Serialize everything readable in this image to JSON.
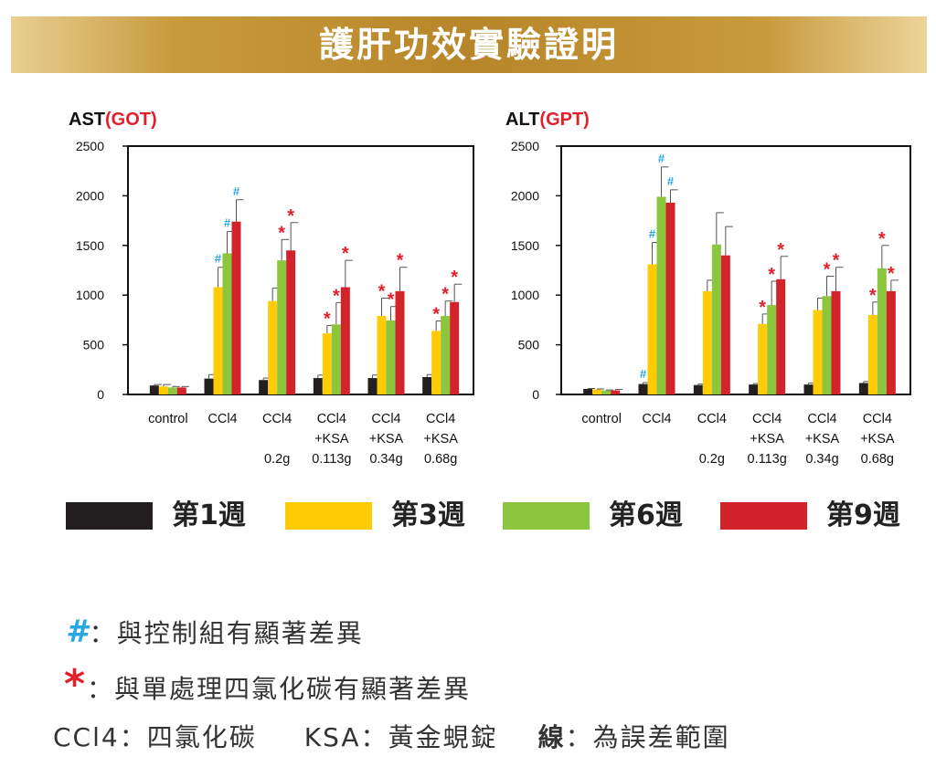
{
  "banner": {
    "title": "護肝功效實驗證明"
  },
  "colors": {
    "week1": "#231f20",
    "week3": "#ffcb05",
    "week6": "#8cc63f",
    "week9": "#d2232a",
    "hash": "#29a8e0",
    "star": "#e2202b"
  },
  "legend": [
    {
      "label": "第1週",
      "color": "#231f20"
    },
    {
      "label": "第3週",
      "color": "#ffcb05"
    },
    {
      "label": "第6週",
      "color": "#8cc63f"
    },
    {
      "label": "第9週",
      "color": "#d2232a"
    }
  ],
  "notes": {
    "hash_symbol": "#",
    "hash_text": "與控制組有顯著差異",
    "star_symbol": "*",
    "star_text": "與單處理四氯化碳有顯著差異",
    "sep": "：",
    "ccl4_key": "CCl4",
    "ccl4_text": "四氯化碳",
    "ksa_key": "KSA",
    "ksa_text": "黃金蜆錠",
    "line_key": "線",
    "line_text": "為誤差範圍"
  },
  "chart_data": [
    {
      "type": "bar",
      "title": "AST",
      "title_suffix": "(GOT)",
      "ylim": [
        0,
        2500
      ],
      "yticks": [
        0,
        500,
        1000,
        1500,
        2000,
        2500
      ],
      "categories": [
        [
          "control"
        ],
        [
          "CCl4"
        ],
        [
          "CCl4",
          "",
          "0.2g"
        ],
        [
          "CCl4",
          "+KSA",
          "0.113g"
        ],
        [
          "CCl4",
          "+KSA",
          "0.34g"
        ],
        [
          "CCl4",
          "+KSA",
          "0.68g"
        ]
      ],
      "series": [
        {
          "name": "第1週",
          "values": [
            90,
            160,
            145,
            165,
            165,
            175
          ],
          "errors": [
            10,
            40,
            20,
            30,
            30,
            25
          ],
          "marks": [
            "",
            "",
            "",
            "",
            "",
            ""
          ]
        },
        {
          "name": "第3週",
          "values": [
            80,
            1080,
            940,
            615,
            790,
            640
          ],
          "errors": [
            20,
            200,
            130,
            80,
            180,
            100
          ],
          "marks": [
            "",
            "#",
            "",
            "*",
            "*",
            "*"
          ]
        },
        {
          "name": "第6週",
          "values": [
            70,
            1420,
            1350,
            705,
            745,
            790
          ],
          "errors": [
            10,
            220,
            210,
            220,
            140,
            150
          ],
          "marks": [
            "",
            "#",
            "*",
            "*",
            "*",
            "*"
          ]
        },
        {
          "name": "第9週",
          "values": [
            70,
            1740,
            1450,
            1080,
            1040,
            930
          ],
          "errors": [
            10,
            220,
            280,
            270,
            240,
            180
          ],
          "marks": [
            "",
            "#",
            "*",
            "*",
            "*",
            "*"
          ]
        }
      ]
    },
    {
      "type": "bar",
      "title": "ALT",
      "title_suffix": "(GPT)",
      "ylim": [
        0,
        2500
      ],
      "yticks": [
        0,
        500,
        1000,
        1500,
        2000,
        2500
      ],
      "categories": [
        [
          "control"
        ],
        [
          "CCl4"
        ],
        [
          "CCl4",
          "",
          "0.2g"
        ],
        [
          "CCl4",
          "+KSA",
          "0.113g"
        ],
        [
          "CCl4",
          "+KSA",
          "0.34g"
        ],
        [
          "CCl4",
          "+KSA",
          "0.68g"
        ]
      ],
      "series": [
        {
          "name": "第1週",
          "values": [
            55,
            105,
            95,
            100,
            100,
            115
          ],
          "errors": [
            5,
            15,
            10,
            10,
            15,
            15
          ],
          "marks": [
            "",
            "#",
            "",
            "",
            "",
            ""
          ]
        },
        {
          "name": "第3週",
          "values": [
            50,
            1310,
            1040,
            710,
            850,
            800
          ],
          "errors": [
            5,
            220,
            110,
            100,
            120,
            130
          ],
          "marks": [
            "",
            "#",
            "",
            "*",
            "",
            "*"
          ]
        },
        {
          "name": "第6週",
          "values": [
            40,
            1990,
            1510,
            900,
            990,
            1270
          ],
          "errors": [
            5,
            300,
            320,
            240,
            200,
            230
          ],
          "marks": [
            "",
            "#",
            "",
            "*",
            "*",
            "*"
          ]
        },
        {
          "name": "第9週",
          "values": [
            40,
            1930,
            1400,
            1160,
            1040,
            1040
          ],
          "errors": [
            10,
            130,
            290,
            230,
            240,
            110
          ],
          "marks": [
            "",
            "#",
            "",
            "*",
            "*",
            "*"
          ]
        }
      ]
    }
  ]
}
